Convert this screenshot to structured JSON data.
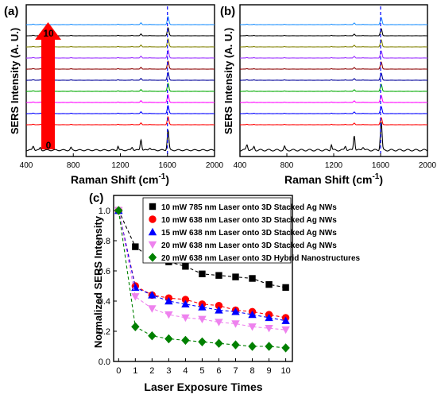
{
  "panels": {
    "a": {
      "label": "(a)",
      "ylabel": "SERS Intensity (A. U.)",
      "xlabel_main": "Raman Shift (cm",
      "xlabel_sup": "-1",
      "xlabel_end": ")",
      "xticks": [
        "400",
        "800",
        "1200",
        "1600",
        "2000"
      ],
      "arrow_top_label": "10",
      "arrow_bottom_label": "0"
    },
    "b": {
      "label": "(b)",
      "ylabel": "SERS Intensity (A. U.)",
      "xlabel_main": "Raman Shift (cm",
      "xlabel_sup": "-1",
      "xlabel_end": ")",
      "xticks": [
        "400",
        "800",
        "1200",
        "1600",
        "2000"
      ]
    },
    "c": {
      "label": "(c)"
    }
  },
  "chart_data": [
    {
      "type": "line",
      "panel": "a",
      "xlabel": "Raman Shift (cm-1)",
      "ylabel": "SERS Intensity (A. U.)",
      "xlim": [
        400,
        2000
      ],
      "dashed_marker_x": 1600,
      "series": [
        {
          "color": "#000000"
        },
        {
          "color": "#ff0000"
        },
        {
          "color": "#0000ff"
        },
        {
          "color": "#ff00ff"
        },
        {
          "color": "#00aa00"
        },
        {
          "color": "#000099"
        },
        {
          "color": "#8b0000"
        },
        {
          "color": "#9b30ff"
        },
        {
          "color": "#808000"
        },
        {
          "color": "#000000"
        },
        {
          "color": "#1e90ff"
        }
      ]
    },
    {
      "type": "line",
      "panel": "b",
      "xlabel": "Raman Shift (cm-1)",
      "ylabel": "SERS Intensity (A. U.)",
      "xlim": [
        400,
        2000
      ],
      "dashed_marker_x": 1600,
      "series": [
        {
          "color": "#000000"
        },
        {
          "color": "#ff0000"
        },
        {
          "color": "#0000ff"
        },
        {
          "color": "#ff00ff"
        },
        {
          "color": "#00aa00"
        },
        {
          "color": "#000099"
        },
        {
          "color": "#8b0000"
        },
        {
          "color": "#9b30ff"
        },
        {
          "color": "#808000"
        },
        {
          "color": "#000000"
        },
        {
          "color": "#1e90ff"
        }
      ]
    },
    {
      "type": "line",
      "panel": "c",
      "xlabel": "Laser Exposure Times",
      "ylabel": "Normalized SERS Intensity",
      "x": [
        0,
        1,
        2,
        3,
        4,
        5,
        6,
        7,
        8,
        9,
        10
      ],
      "xlim": [
        -0.3,
        10.4
      ],
      "ylim": [
        0.0,
        1.1
      ],
      "xticks": [
        "0",
        "1",
        "2",
        "3",
        "4",
        "5",
        "6",
        "7",
        "8",
        "9",
        "10"
      ],
      "yticks": [
        "0.0",
        "0.2",
        "0.4",
        "0.6",
        "0.8",
        "1.0"
      ],
      "legend_position": "top-right",
      "series": [
        {
          "name": "10 mW 785 nm Laser onto 3D Stacked Ag NWs",
          "color": "#000000",
          "marker": "square",
          "values": [
            1.0,
            0.76,
            0.68,
            0.66,
            0.63,
            0.58,
            0.57,
            0.56,
            0.55,
            0.51,
            0.49
          ]
        },
        {
          "name": "10 mW 638 nm Laser onto 3D Stacked Ag NWs",
          "color": "#ff0000",
          "marker": "circle",
          "values": [
            1.0,
            0.5,
            0.44,
            0.42,
            0.41,
            0.38,
            0.37,
            0.34,
            0.33,
            0.31,
            0.29
          ]
        },
        {
          "name": "15 mW 638 nm Laser onto 3D Stacked Ag NWs",
          "color": "#0000ff",
          "marker": "triangle-up",
          "values": [
            1.0,
            0.49,
            0.44,
            0.4,
            0.38,
            0.36,
            0.34,
            0.33,
            0.31,
            0.29,
            0.27
          ]
        },
        {
          "name": "20 mW 638 nm Laser onto 3D Stacked Ag NWs",
          "color": "#ee82ee",
          "marker": "triangle-down",
          "values": [
            1.0,
            0.43,
            0.35,
            0.31,
            0.29,
            0.28,
            0.26,
            0.25,
            0.23,
            0.22,
            0.21
          ]
        },
        {
          "name": "20 mW 638 nm Laser onto 3D Hybrid Nanostructures",
          "color": "#008000",
          "marker": "diamond",
          "values": [
            1.0,
            0.23,
            0.17,
            0.15,
            0.14,
            0.13,
            0.12,
            0.11,
            0.1,
            0.1,
            0.09
          ]
        }
      ]
    }
  ]
}
